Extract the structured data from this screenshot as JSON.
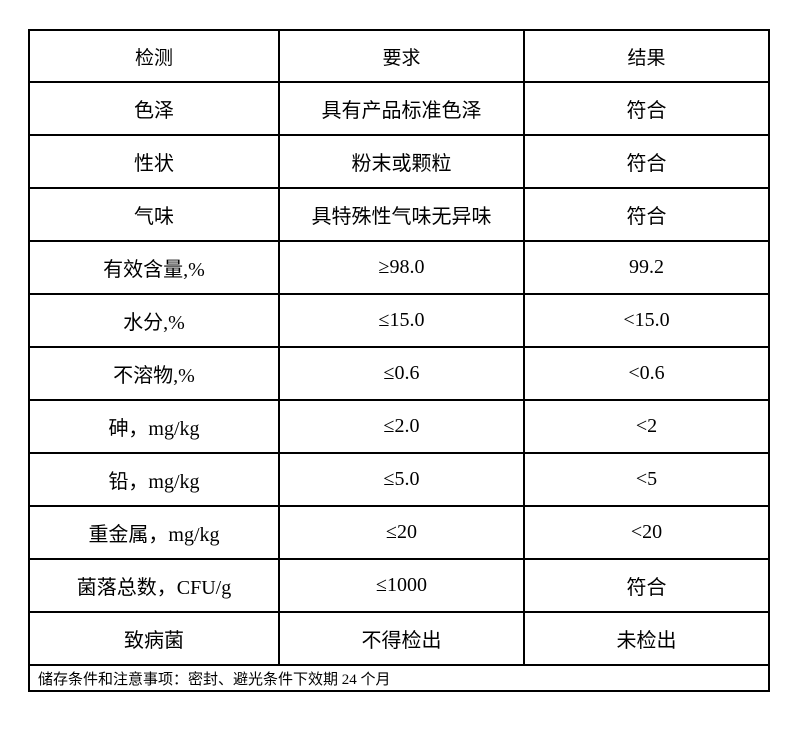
{
  "table": {
    "header": [
      "检测",
      "要求",
      "结果"
    ],
    "rows": [
      [
        "色泽",
        "具有产品标准色泽",
        "符合"
      ],
      [
        "性状",
        "粉末或颗粒",
        "符合"
      ],
      [
        "气味",
        "具特殊性气味无异味",
        "符合"
      ],
      [
        "有效含量,%",
        "≥98.0",
        "99.2"
      ],
      [
        "水分,%",
        "≤15.0",
        "<15.0"
      ],
      [
        "不溶物,%",
        "≤0.6",
        "<0.6"
      ],
      [
        "砷，mg/kg",
        "≤2.0",
        "<2"
      ],
      [
        "铅，mg/kg",
        "≤5.0",
        "<5"
      ],
      [
        "重金属，mg/kg",
        "≤20",
        "<20"
      ],
      [
        "菌落总数，CFU/g",
        "≤1000",
        "符合"
      ],
      [
        "致病菌",
        "不得检出",
        "未检出"
      ]
    ],
    "footer": "储存条件和注意事项：密封、避光条件下效期 24 个月"
  },
  "colors": {
    "border": "#000000",
    "background": "#ffffff",
    "text": "#000000"
  }
}
